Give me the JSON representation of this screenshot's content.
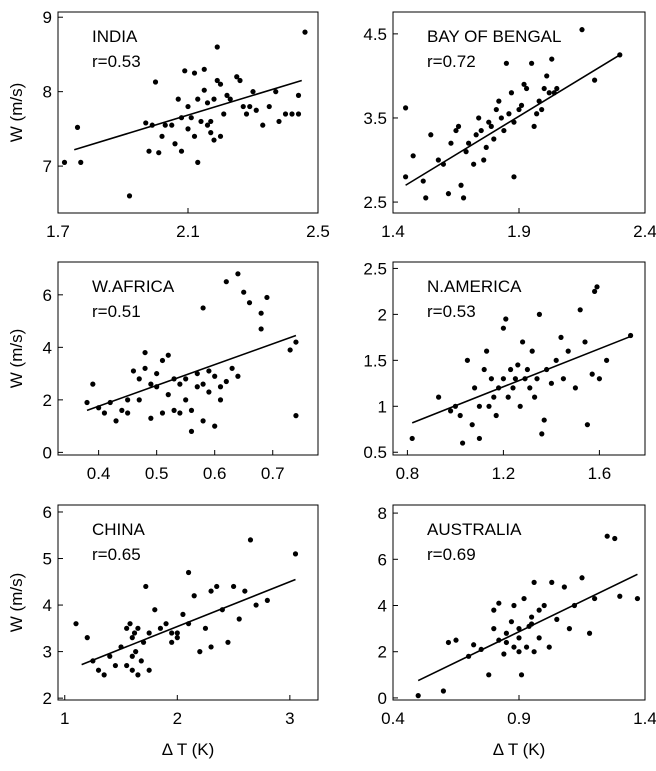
{
  "chart_data": [
    {
      "type": "scatter",
      "title": "INDIA",
      "annotation": "r=0.53",
      "ylabel": "W (m/s)",
      "color": "#000000",
      "xlim": [
        1.7,
        2.5
      ],
      "ylim": [
        6.37,
        9.07
      ],
      "xticks": [
        1.7,
        2.1,
        2.5
      ],
      "yticks": [
        7,
        8,
        9
      ],
      "x": [
        1.72,
        1.76,
        1.77,
        1.92,
        1.97,
        1.98,
        1.99,
        2.0,
        2.01,
        2.02,
        2.03,
        2.05,
        2.06,
        2.07,
        2.08,
        2.08,
        2.09,
        2.1,
        2.1,
        2.11,
        2.12,
        2.12,
        2.13,
        2.13,
        2.14,
        2.15,
        2.15,
        2.16,
        2.16,
        2.17,
        2.17,
        2.18,
        2.18,
        2.19,
        2.19,
        2.2,
        2.2,
        2.21,
        2.22,
        2.23,
        2.25,
        2.26,
        2.27,
        2.28,
        2.29,
        2.3,
        2.31,
        2.33,
        2.35,
        2.37,
        2.38,
        2.4,
        2.42,
        2.44,
        2.44,
        2.46
      ],
      "y": [
        7.05,
        7.52,
        7.05,
        6.6,
        7.58,
        7.2,
        7.55,
        8.13,
        7.18,
        7.4,
        7.55,
        7.55,
        7.3,
        7.9,
        7.2,
        7.65,
        8.28,
        7.5,
        7.8,
        7.65,
        8.25,
        7.4,
        7.05,
        7.9,
        7.6,
        8.02,
        8.3,
        7.55,
        7.85,
        7.6,
        7.45,
        7.35,
        7.9,
        8.15,
        8.6,
        7.4,
        8.1,
        7.7,
        7.95,
        7.9,
        8.2,
        8.15,
        7.8,
        7.7,
        7.8,
        8.0,
        7.75,
        7.55,
        7.8,
        8.0,
        7.6,
        7.7,
        7.7,
        7.95,
        7.7,
        8.8
      ],
      "fit": {
        "x": [
          1.75,
          2.45
        ],
        "y": [
          7.22,
          8.15
        ]
      }
    },
    {
      "type": "scatter",
      "title": "BAY OF BENGAL",
      "annotation": "r=0.72",
      "color": "#000000",
      "xlim": [
        1.4,
        2.4
      ],
      "ylim": [
        2.37,
        4.76
      ],
      "xticks": [
        1.4,
        1.9,
        2.4
      ],
      "yticks": [
        2.5,
        3.5,
        4.5
      ],
      "x": [
        1.45,
        1.45,
        1.48,
        1.52,
        1.53,
        1.55,
        1.58,
        1.6,
        1.62,
        1.63,
        1.65,
        1.66,
        1.67,
        1.68,
        1.69,
        1.7,
        1.72,
        1.73,
        1.74,
        1.75,
        1.76,
        1.77,
        1.78,
        1.79,
        1.8,
        1.81,
        1.82,
        1.83,
        1.84,
        1.85,
        1.86,
        1.87,
        1.88,
        1.88,
        1.9,
        1.91,
        1.92,
        1.93,
        1.95,
        1.96,
        1.97,
        1.98,
        1.99,
        2.0,
        2.01,
        2.02,
        2.03,
        2.04,
        2.05,
        2.2,
        2.15,
        2.3
      ],
      "y": [
        2.8,
        3.62,
        3.05,
        2.75,
        2.55,
        3.3,
        3.0,
        2.95,
        2.6,
        3.2,
        3.35,
        3.4,
        2.7,
        2.55,
        3.1,
        3.2,
        2.95,
        3.3,
        3.5,
        3.35,
        3.0,
        3.15,
        3.45,
        3.4,
        3.25,
        3.6,
        3.7,
        3.5,
        3.35,
        4.15,
        3.55,
        3.8,
        3.45,
        2.8,
        3.6,
        3.65,
        3.9,
        3.85,
        4.15,
        3.4,
        3.55,
        3.7,
        3.6,
        3.85,
        4.0,
        3.8,
        4.2,
        3.8,
        3.85,
        3.95,
        4.55,
        4.25
      ],
      "fit": {
        "x": [
          1.45,
          2.3
        ],
        "y": [
          2.7,
          4.25
        ]
      }
    },
    {
      "type": "scatter",
      "title": "W.AFRICA",
      "annotation": "r=0.51",
      "ylabel": "W (m/s)",
      "color": "#000000",
      "xlim": [
        0.33,
        0.778
      ],
      "ylim": [
        -0.1,
        7.25
      ],
      "xticks": [
        0.4,
        0.5,
        0.6,
        0.7
      ],
      "yticks": [
        0,
        2,
        4,
        6
      ],
      "x": [
        0.38,
        0.39,
        0.4,
        0.41,
        0.42,
        0.43,
        0.44,
        0.45,
        0.45,
        0.46,
        0.47,
        0.47,
        0.48,
        0.48,
        0.49,
        0.49,
        0.5,
        0.5,
        0.51,
        0.51,
        0.52,
        0.52,
        0.53,
        0.53,
        0.54,
        0.54,
        0.55,
        0.55,
        0.56,
        0.56,
        0.57,
        0.57,
        0.58,
        0.58,
        0.59,
        0.59,
        0.6,
        0.6,
        0.61,
        0.61,
        0.62,
        0.63,
        0.64,
        0.64,
        0.65,
        0.66,
        0.68,
        0.68,
        0.69,
        0.73,
        0.74,
        0.74,
        0.58,
        0.62
      ],
      "y": [
        1.9,
        2.6,
        1.7,
        1.5,
        1.9,
        1.2,
        1.6,
        2.0,
        1.5,
        3.1,
        2.8,
        2.0,
        3.8,
        3.2,
        2.6,
        1.3,
        3.0,
        2.5,
        3.5,
        1.5,
        3.7,
        2.2,
        1.6,
        2.8,
        2.6,
        1.5,
        2.8,
        2.0,
        1.6,
        0.8,
        3.0,
        2.5,
        1.2,
        5.5,
        3.1,
        2.3,
        2.9,
        1.0,
        2.5,
        2.0,
        6.5,
        3.2,
        6.8,
        2.9,
        6.1,
        5.7,
        5.3,
        4.7,
        5.9,
        3.9,
        4.2,
        1.4,
        2.6,
        2.7
      ],
      "fit": {
        "x": [
          0.38,
          0.74
        ],
        "y": [
          1.6,
          4.45
        ]
      }
    },
    {
      "type": "scatter",
      "title": "N.AMERICA",
      "annotation": "r=0.53",
      "color": "#000000",
      "xlim": [
        0.74,
        1.79
      ],
      "ylim": [
        0.47,
        2.57
      ],
      "xticks": [
        0.8,
        1.2,
        1.6
      ],
      "yticks": [
        0.5,
        1,
        1.5,
        2,
        2.5
      ],
      "x": [
        0.82,
        0.93,
        0.98,
        1.0,
        1.02,
        1.03,
        1.05,
        1.07,
        1.08,
        1.1,
        1.1,
        1.12,
        1.13,
        1.14,
        1.15,
        1.16,
        1.17,
        1.18,
        1.2,
        1.2,
        1.21,
        1.22,
        1.23,
        1.24,
        1.25,
        1.26,
        1.27,
        1.28,
        1.29,
        1.3,
        1.31,
        1.32,
        1.33,
        1.34,
        1.35,
        1.36,
        1.37,
        1.38,
        1.4,
        1.42,
        1.44,
        1.45,
        1.47,
        1.5,
        1.52,
        1.54,
        1.55,
        1.57,
        1.58,
        1.59,
        1.6,
        1.63,
        1.73
      ],
      "y": [
        0.65,
        1.1,
        0.95,
        1.0,
        0.9,
        0.6,
        1.5,
        0.8,
        1.2,
        1.0,
        0.65,
        1.4,
        1.6,
        1.0,
        1.3,
        1.1,
        0.9,
        1.2,
        1.85,
        1.3,
        1.95,
        1.1,
        1.4,
        1.2,
        1.3,
        1.45,
        1.0,
        1.7,
        1.3,
        1.4,
        1.2,
        1.6,
        1.1,
        1.3,
        2.0,
        0.7,
        0.85,
        1.4,
        1.25,
        1.5,
        1.75,
        1.3,
        1.6,
        1.2,
        2.05,
        1.7,
        0.8,
        1.35,
        2.25,
        2.3,
        1.3,
        1.5,
        1.77
      ],
      "fit": {
        "x": [
          0.82,
          1.73
        ],
        "y": [
          0.82,
          1.76
        ]
      }
    },
    {
      "type": "scatter",
      "title": "CHINA",
      "annotation": "r=0.65",
      "ylabel": "W (m/s)",
      "xlabel": "Δ T (K)",
      "color": "#000000",
      "xlim": [
        0.94,
        3.25
      ],
      "ylim": [
        1.96,
        6.15
      ],
      "xticks": [
        1,
        2,
        3
      ],
      "yticks": [
        2,
        3,
        4,
        5,
        6
      ],
      "x": [
        1.1,
        1.2,
        1.25,
        1.3,
        1.35,
        1.4,
        1.45,
        1.5,
        1.55,
        1.55,
        1.58,
        1.6,
        1.6,
        1.62,
        1.63,
        1.65,
        1.65,
        1.68,
        1.7,
        1.72,
        1.75,
        1.75,
        1.8,
        1.85,
        1.9,
        1.95,
        1.95,
        2.0,
        2.05,
        2.1,
        2.1,
        2.15,
        2.2,
        2.25,
        2.3,
        2.35,
        2.4,
        2.45,
        2.5,
        2.55,
        2.6,
        2.65,
        2.7,
        2.8,
        3.05,
        2.3,
        2.0,
        1.6
      ],
      "y": [
        3.6,
        3.3,
        2.8,
        2.6,
        2.5,
        2.9,
        2.7,
        3.1,
        2.7,
        3.5,
        3.6,
        3.3,
        2.6,
        3.4,
        3.0,
        2.5,
        3.5,
        2.8,
        3.2,
        4.4,
        2.6,
        3.4,
        3.9,
        3.5,
        3.6,
        3.2,
        3.4,
        3.3,
        3.8,
        4.7,
        3.6,
        4.2,
        3.0,
        3.5,
        4.3,
        4.4,
        3.9,
        3.2,
        4.4,
        3.7,
        4.3,
        5.4,
        4.0,
        4.1,
        5.1,
        3.1,
        3.4,
        2.9
      ],
      "fit": {
        "x": [
          1.15,
          3.05
        ],
        "y": [
          2.72,
          4.55
        ]
      }
    },
    {
      "type": "scatter",
      "title": "AUSTRALIA",
      "annotation": "r=0.69",
      "xlabel": "Δ T (K)",
      "color": "#000000",
      "xlim": [
        0.4,
        1.4
      ],
      "ylim": [
        -0.09,
        8.35
      ],
      "xticks": [
        0.4,
        0.9,
        1.4
      ],
      "yticks": [
        0,
        2,
        4,
        6,
        8
      ],
      "x": [
        0.5,
        0.6,
        0.62,
        0.65,
        0.7,
        0.72,
        0.75,
        0.78,
        0.8,
        0.8,
        0.82,
        0.82,
        0.84,
        0.85,
        0.85,
        0.87,
        0.88,
        0.88,
        0.9,
        0.9,
        0.91,
        0.92,
        0.93,
        0.94,
        0.95,
        0.96,
        0.96,
        0.98,
        0.98,
        1.0,
        1.02,
        1.03,
        1.05,
        1.08,
        1.1,
        1.12,
        1.15,
        1.18,
        1.2,
        1.25,
        1.28,
        1.3,
        1.37,
        0.95,
        0.9
      ],
      "y": [
        0.1,
        0.3,
        2.4,
        2.5,
        1.8,
        2.3,
        2.1,
        1.0,
        3.0,
        3.8,
        2.5,
        4.1,
        1.9,
        2.8,
        2.4,
        3.3,
        2.2,
        4.0,
        3.0,
        2.0,
        1.0,
        4.3,
        2.2,
        3.1,
        3.5,
        2.0,
        5.0,
        3.8,
        2.6,
        4.0,
        2.2,
        5.0,
        3.4,
        4.8,
        3.0,
        4.0,
        5.2,
        2.8,
        4.3,
        7.0,
        6.9,
        4.4,
        4.3,
        3.2,
        2.6
      ],
      "fit": {
        "x": [
          0.5,
          1.37
        ],
        "y": [
          0.75,
          5.35
        ]
      }
    }
  ]
}
